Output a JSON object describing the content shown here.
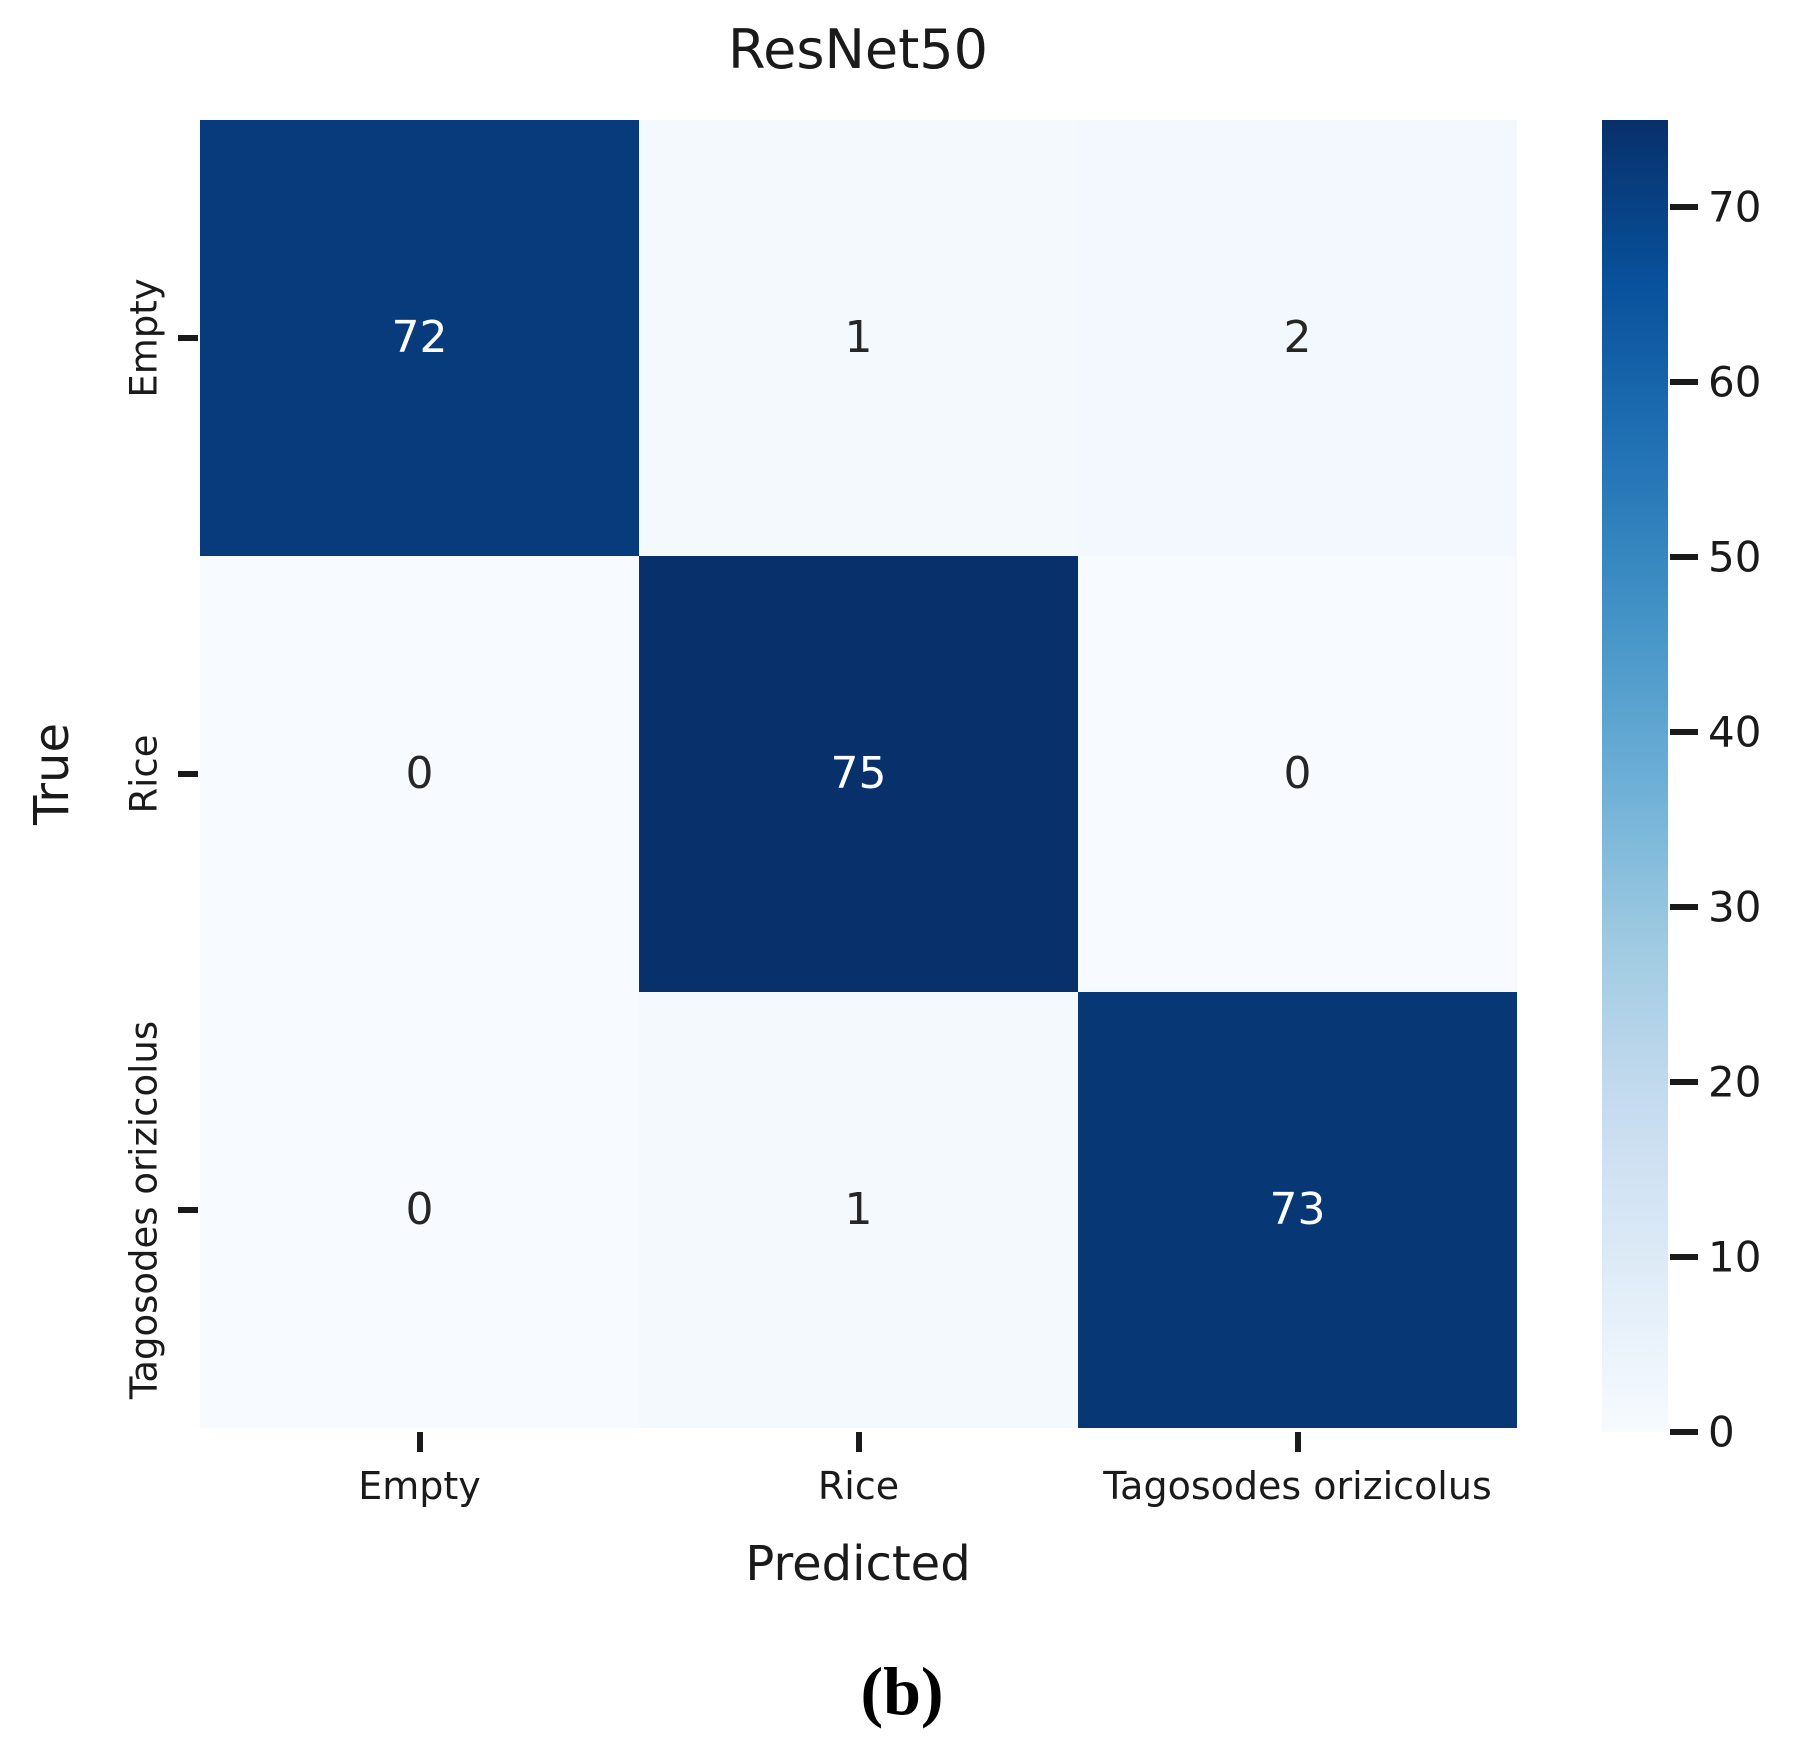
{
  "figure": {
    "caption": "(b)"
  },
  "chart_data": {
    "type": "heatmap",
    "title": "ResNet50",
    "xlabel": "Predicted",
    "ylabel": "True",
    "x_categories": [
      "Empty",
      "Rice",
      "Tagosodes orizicolus"
    ],
    "y_categories": [
      "Empty",
      "Rice",
      "Tagosodes orizicolus"
    ],
    "matrix": [
      [
        72,
        1,
        2
      ],
      [
        0,
        75,
        0
      ],
      [
        0,
        1,
        73
      ]
    ],
    "vmin": 0,
    "vmax": 75,
    "colorbar_ticks": [
      70,
      60,
      50,
      40,
      30,
      20,
      10,
      0
    ],
    "colorbar_position": "right",
    "colormap": "Blues",
    "colormap_anchors": [
      "#f7fbff",
      "#deebf7",
      "#c6dbef",
      "#9ecae1",
      "#6baed6",
      "#4292c6",
      "#2171b5",
      "#08519c",
      "#08306b"
    ],
    "annotation_color_on_light": "#262626",
    "annotation_color_on_dark": "#ffffff",
    "tick_color": "#1a1a1a",
    "grid": false
  }
}
